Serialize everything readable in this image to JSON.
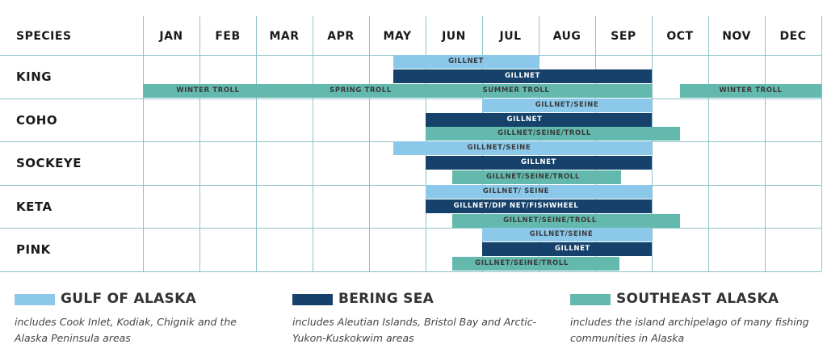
{
  "chart_data": {
    "type": "gantt",
    "species_header": "SPECIES",
    "months": [
      "JAN",
      "FEB",
      "MAR",
      "APR",
      "MAY",
      "JUN",
      "JUL",
      "AUG",
      "SEP",
      "OCT",
      "NOV",
      "DEC"
    ],
    "species": [
      "KING",
      "COHO",
      "SOCKEYE",
      "KETA",
      "PINK"
    ],
    "regions": [
      {
        "name": "GULF OF ALASKA",
        "color": "#8cc8ea",
        "text_color": "#3a3a3a",
        "description": "includes Cook Inlet, Kodiak, Chignik and the Alaska Peninsula areas"
      },
      {
        "name": "BERING SEA",
        "color": "#15416a",
        "text_color": "#ffffff",
        "description": "includes Aleutian Islands, Bristol Bay and Arctic-Yukon-Kuskokwim areas"
      },
      {
        "name": "SOUTHEAST ALASKA",
        "color": "#63b9ad",
        "text_color": "#3a3a3a",
        "description": "includes the island archipelago of many fishing communities in Alaska"
      }
    ],
    "bars": [
      {
        "species": 0,
        "region": 0,
        "start": 4.43,
        "end": 7.0,
        "label": "GILLNET"
      },
      {
        "species": 0,
        "region": 1,
        "start": 4.43,
        "end": 9.0,
        "label": "GILLNET"
      },
      {
        "species": 0,
        "region": 2,
        "start": 0.0,
        "end": 2.3,
        "label": "WINTER TROLL"
      },
      {
        "species": 0,
        "region": 2,
        "start": 2.3,
        "end": 5.4,
        "label": "SPRING TROLL"
      },
      {
        "species": 0,
        "region": 2,
        "start": 5.4,
        "end": 9.0,
        "label": "SUMMER TROLL",
        "label_at": 6.6
      },
      {
        "species": 0,
        "region": 2,
        "start": 9.5,
        "end": 12.0,
        "label": "WINTER TROLL"
      },
      {
        "species": 1,
        "region": 0,
        "start": 6.0,
        "end": 9.0,
        "label": "GILLNET/SEINE"
      },
      {
        "species": 1,
        "region": 1,
        "start": 5.0,
        "end": 9.0,
        "label": "GILLNET",
        "label_at": 6.75
      },
      {
        "species": 1,
        "region": 2,
        "start": 5.0,
        "end": 9.5,
        "label": "GILLNET/SEINE/TROLL",
        "label_at": 7.1
      },
      {
        "species": 2,
        "region": 0,
        "start": 4.43,
        "end": 9.0,
        "label": "GILLNET/SEINE",
        "label_at": 6.3
      },
      {
        "species": 2,
        "region": 1,
        "start": 5.0,
        "end": 9.0,
        "label": "GILLNET"
      },
      {
        "species": 2,
        "region": 2,
        "start": 5.47,
        "end": 8.46,
        "label": "GILLNET/SEINE/TROLL",
        "label_at": 6.9
      },
      {
        "species": 3,
        "region": 0,
        "start": 5.0,
        "end": 9.0,
        "label": "GILLNET/ SEINE",
        "label_at": 6.6
      },
      {
        "species": 3,
        "region": 1,
        "start": 5.0,
        "end": 9.0,
        "label": "GILLNET/DIP NET/FISHWHEEL",
        "label_at": 6.6
      },
      {
        "species": 3,
        "region": 2,
        "start": 5.47,
        "end": 9.5,
        "label": "GILLNET/SEINE/TROLL",
        "label_at": 7.2
      },
      {
        "species": 4,
        "region": 0,
        "start": 6.0,
        "end": 9.0,
        "label": "GILLNET/SEINE",
        "label_at": 7.4
      },
      {
        "species": 4,
        "region": 1,
        "start": 6.0,
        "end": 9.0,
        "label": "GILLNET",
        "label_at": 7.6
      },
      {
        "species": 4,
        "region": 2,
        "start": 5.47,
        "end": 8.43,
        "label": "GILLNET/SEINE/TROLL",
        "label_at": 6.7
      }
    ]
  }
}
